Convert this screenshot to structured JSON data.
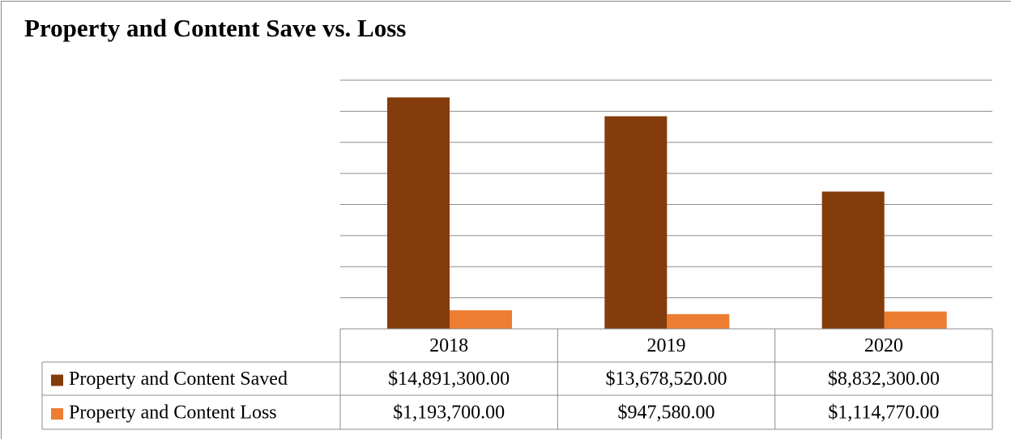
{
  "chart_data": {
    "type": "bar",
    "title": "Property and Content Save vs. Loss",
    "categories": [
      "2018",
      "2019",
      "2020"
    ],
    "series": [
      {
        "name": "Property and Content Saved",
        "color": "#843c0c",
        "values": [
          14891300,
          13678520,
          8832300
        ],
        "value_labels": [
          "$14,891,300.00",
          "$13,678,520.00",
          "$8,832,300.00"
        ]
      },
      {
        "name": "Property and Content Loss",
        "color": "#ed7d31",
        "values": [
          1193700,
          947580,
          1114770
        ],
        "value_labels": [
          "$1,193,700.00",
          "$947,580.00",
          "$1,114,770.00"
        ]
      }
    ],
    "ylim": [
      0,
      16000000
    ],
    "yticks": [
      0,
      2000000,
      4000000,
      6000000,
      8000000,
      10000000,
      12000000,
      14000000,
      16000000
    ],
    "grid": true,
    "data_table": true
  }
}
